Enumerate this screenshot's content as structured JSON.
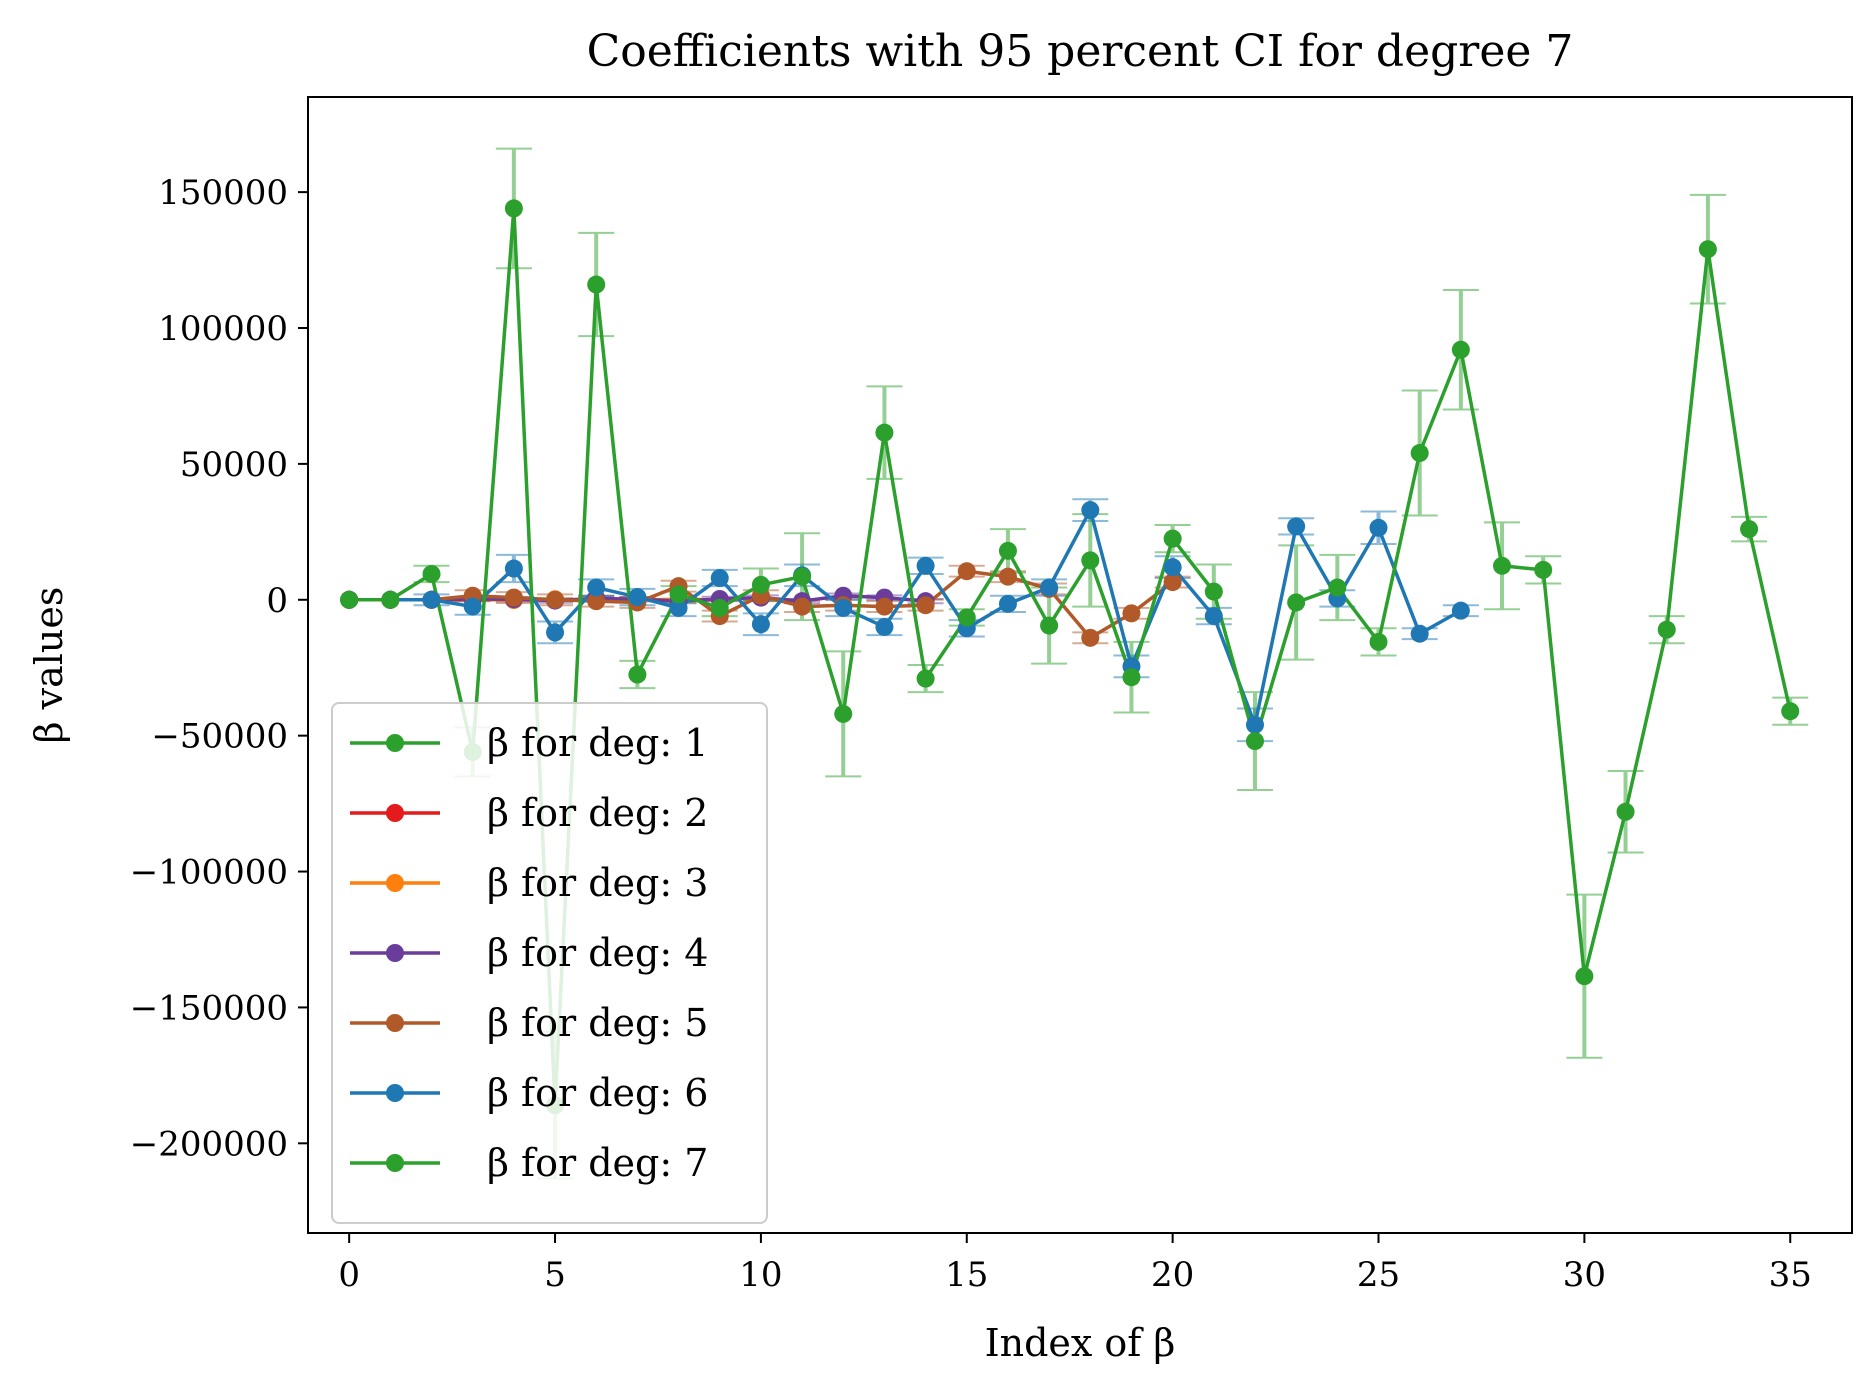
{
  "chart_data": {
    "type": "line",
    "title": "Coefficients with 95 percent CI for degree 7",
    "xlabel": "Index of β",
    "ylabel": "β values",
    "xlim": [
      -1,
      36.5
    ],
    "ylim": [
      -233000,
      185000
    ],
    "xticks": [
      0,
      5,
      10,
      15,
      20,
      25,
      30,
      35
    ],
    "yticks": [
      150000,
      100000,
      50000,
      0,
      -50000,
      -100000,
      -150000,
      -200000
    ],
    "ytick_labels": [
      "150000",
      "100000",
      "50000",
      "0",
      "−50000",
      "−100000",
      "−150000",
      "−200000"
    ],
    "grid": false,
    "legend_position": "lower-left",
    "series": [
      {
        "name": "β for deg: 1",
        "color": "#2ca02c",
        "x": [
          0,
          1
        ],
        "y": [
          0,
          0
        ],
        "ci": [
          0,
          0
        ]
      },
      {
        "name": "β for deg: 2",
        "color": "#e41a1c",
        "x": [
          0,
          1,
          2,
          3,
          4,
          5
        ],
        "y": [
          0,
          0,
          0,
          0,
          0,
          0
        ],
        "ci": [
          0,
          0,
          0,
          0,
          0,
          0
        ]
      },
      {
        "name": "β for deg: 3",
        "color": "#ff7f0e",
        "x": [
          0,
          1,
          2,
          3,
          4,
          5,
          6,
          7,
          8,
          9
        ],
        "y": [
          0,
          0,
          0,
          100,
          -100,
          200,
          -200,
          0,
          100,
          0
        ],
        "ci": [
          0,
          0,
          0,
          300,
          300,
          300,
          300,
          300,
          300,
          300
        ]
      },
      {
        "name": "β for deg: 4",
        "color": "#6a3d9a",
        "x": [
          0,
          1,
          2,
          3,
          4,
          5,
          6,
          7,
          8,
          9,
          10,
          11,
          12,
          13,
          14
        ],
        "y": [
          0,
          0,
          0,
          300,
          200,
          -300,
          500,
          200,
          -500,
          300,
          800,
          -500,
          1500,
          800,
          -500
        ],
        "ci": [
          0,
          0,
          0,
          800,
          800,
          800,
          800,
          800,
          800,
          800,
          800,
          800,
          800,
          800,
          800
        ]
      },
      {
        "name": "β for deg: 5",
        "color": "#b15928",
        "x": [
          0,
          1,
          2,
          3,
          4,
          5,
          6,
          7,
          8,
          9,
          10,
          11,
          12,
          13,
          14,
          15,
          16,
          17,
          18,
          19,
          20
        ],
        "y": [
          0,
          0,
          0,
          1500,
          800,
          0,
          -500,
          -1000,
          5000,
          -6000,
          1500,
          -2500,
          -2000,
          -2500,
          -2000,
          10500,
          8500,
          4000,
          -14000,
          -5000,
          6500
        ],
        "ci": [
          0,
          0,
          0,
          2000,
          2000,
          2000,
          2000,
          2000,
          2000,
          2000,
          2000,
          2000,
          2000,
          2000,
          2000,
          2000,
          2000,
          2000,
          2000,
          2000,
          2000
        ]
      },
      {
        "name": "β for deg: 6",
        "color": "#1f78b4",
        "x": [
          0,
          1,
          2,
          3,
          4,
          5,
          6,
          7,
          8,
          9,
          10,
          11,
          12,
          13,
          14,
          15,
          16,
          17,
          18,
          19,
          20,
          21,
          22,
          23,
          24,
          25,
          26,
          27
        ],
        "y": [
          0,
          0,
          0,
          -2500,
          11500,
          -12000,
          4500,
          1000,
          -3000,
          8000,
          -9000,
          9000,
          -3000,
          -10000,
          12500,
          -10500,
          -1500,
          4500,
          33000,
          -24500,
          12000,
          -6000,
          -46000,
          27000,
          500,
          26500,
          -12500,
          -4000
        ],
        "ci": [
          0,
          0,
          2000,
          3000,
          5000,
          4000,
          3000,
          3000,
          3000,
          3000,
          4000,
          4000,
          3000,
          3000,
          3000,
          3000,
          3000,
          3000,
          4000,
          4000,
          4000,
          3000,
          6000,
          3000,
          3000,
          6000,
          2000,
          2000
        ]
      },
      {
        "name": "β for deg: 7",
        "color": "#2ca02c",
        "x": [
          0,
          1,
          2,
          3,
          4,
          5,
          6,
          7,
          8,
          9,
          10,
          11,
          12,
          13,
          14,
          15,
          16,
          17,
          18,
          19,
          20,
          21,
          22,
          23,
          24,
          25,
          26,
          27,
          28,
          29,
          30,
          31,
          32,
          33,
          34,
          35
        ],
        "y": [
          0,
          0,
          9500,
          -56000,
          144000,
          -186000,
          116000,
          -27500,
          2000,
          -3000,
          5500,
          8500,
          -42000,
          61500,
          -29000,
          -6500,
          18000,
          -9500,
          14500,
          -28500,
          22500,
          3000,
          -52000,
          -1000,
          4500,
          -15500,
          54000,
          92000,
          12500,
          11000,
          -138500,
          -78000,
          -11000,
          129000,
          26000,
          -41000
        ],
        "ci": [
          0,
          0,
          3000,
          9000,
          22000,
          27000,
          19000,
          5000,
          3000,
          3000,
          6000,
          16000,
          23000,
          17000,
          5000,
          3000,
          8000,
          14000,
          17000,
          13000,
          5000,
          10000,
          18000,
          21000,
          12000,
          5000,
          23000,
          22000,
          16000,
          5000,
          30000,
          15000,
          5000,
          20000,
          4500,
          5000
        ]
      }
    ]
  }
}
